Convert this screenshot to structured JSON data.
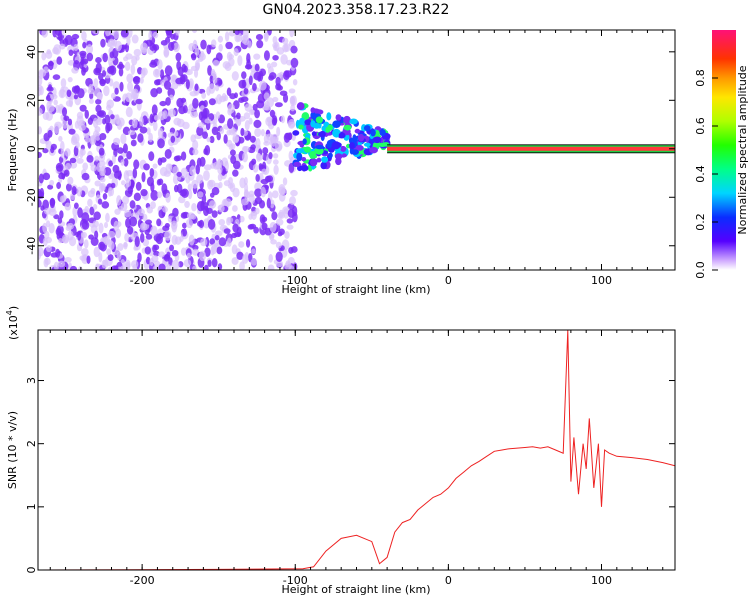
{
  "title": "GN04.2023.358.17.23.R22",
  "colors": {
    "snr_line": "#ee2222",
    "scatter": "#7a2cf5",
    "scatter_light": "#d9c2fb",
    "ridge": "#ff3b3b",
    "ridge_edge": "#22cc44"
  },
  "chart_data": [
    {
      "type": "heatmap",
      "xlabel": "Height of straight line (km)",
      "ylabel": "Frequency (Hz)",
      "xlim": [
        -268,
        148
      ],
      "ylim": [
        -50,
        49
      ],
      "xticks": [
        -200,
        -100,
        0,
        100
      ],
      "yticks": [
        -40,
        -20,
        0,
        20,
        40
      ],
      "grid": false,
      "colorbar": {
        "label": "Normalized spectral amplitude",
        "ticks": [
          0.0,
          0.2,
          0.4,
          0.6,
          0.8
        ],
        "range": [
          0,
          1
        ]
      },
      "regions": [
        {
          "x": [
            -268,
            -100
          ],
          "y": [
            -50,
            49
          ],
          "description_value": "broadband low amplitude"
        },
        {
          "x": [
            -100,
            -40
          ],
          "y": [
            -15,
            20
          ],
          "description_value": "scattered mid amplitude"
        },
        {
          "x": [
            -40,
            148
          ],
          "y": [
            -1,
            1
          ],
          "description_value": "narrow carrier ridge near 0 Hz"
        }
      ]
    },
    {
      "type": "line",
      "xlabel": "Height of straight line (km)",
      "ylabel": "SNR (10 * v/v)",
      "scale_label": "(x10",
      "scale_exp": "4",
      "scale_close": ")",
      "xlim": [
        -268,
        148
      ],
      "ylim": [
        0,
        3.8
      ],
      "xticks": [
        -200,
        -100,
        0,
        100
      ],
      "yticks": [
        0,
        1,
        2,
        3
      ],
      "grid": false,
      "series": [
        {
          "x": [
            -268,
            -150,
            -95,
            -88,
            -80,
            -70,
            -60,
            -50,
            -45,
            -40,
            -35,
            -30,
            -25,
            -20,
            -15,
            -10,
            -5,
            0,
            5,
            10,
            15,
            20,
            25,
            30,
            35,
            40,
            45,
            50,
            55,
            60,
            65,
            70,
            75,
            78,
            80,
            82,
            85,
            88,
            90,
            92,
            95,
            98,
            100,
            102,
            105,
            110,
            120,
            130,
            140,
            148
          ],
          "y": [
            0.0,
            0.01,
            0.02,
            0.05,
            0.3,
            0.5,
            0.55,
            0.45,
            0.1,
            0.2,
            0.6,
            0.75,
            0.8,
            0.95,
            1.05,
            1.15,
            1.2,
            1.3,
            1.45,
            1.55,
            1.65,
            1.72,
            1.8,
            1.88,
            1.9,
            1.92,
            1.93,
            1.94,
            1.95,
            1.93,
            1.95,
            1.9,
            1.85,
            3.8,
            1.4,
            2.1,
            1.2,
            2.0,
            1.6,
            2.4,
            1.3,
            2.0,
            1.0,
            1.9,
            1.85,
            1.8,
            1.78,
            1.75,
            1.7,
            1.65
          ]
        }
      ]
    }
  ]
}
